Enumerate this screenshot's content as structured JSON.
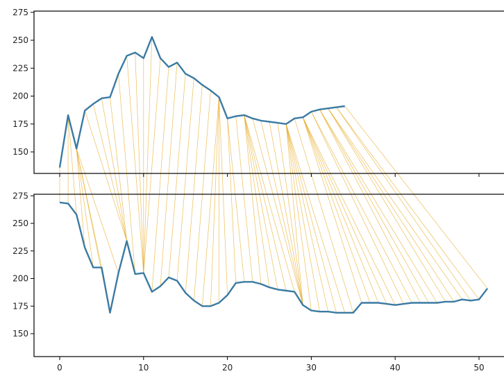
{
  "colors": {
    "series": "#3a7aa3",
    "connection": "#e6a81e",
    "axis": "#000000"
  },
  "chart_data": [
    {
      "type": "line",
      "panel": "top",
      "title": "",
      "xlabel": "",
      "ylabel": "",
      "xlim": [
        -2,
        53
      ],
      "ylim": [
        130,
        278
      ],
      "yticks": [
        150,
        175,
        200,
        225,
        250,
        275
      ],
      "series": [
        {
          "x": [
            0,
            1,
            2,
            3,
            4,
            5,
            6,
            7,
            8,
            9,
            10,
            11,
            12,
            13,
            14,
            15,
            16,
            17,
            18,
            19,
            20,
            21,
            22,
            23,
            24,
            25,
            26,
            27,
            28,
            29,
            30,
            31,
            32,
            33,
            34
          ],
          "values": [
            136,
            183,
            153,
            187,
            193,
            198,
            199,
            220,
            236,
            239,
            234,
            253,
            234,
            226,
            230,
            220,
            216,
            210,
            205,
            199,
            180,
            182,
            183,
            180,
            178,
            177,
            176,
            175,
            180,
            181,
            186,
            188,
            189,
            190,
            191
          ]
        }
      ]
    },
    {
      "type": "line",
      "panel": "bottom",
      "title": "",
      "xlabel": "",
      "ylabel": "",
      "xlim": [
        -2,
        53
      ],
      "ylim": [
        130,
        278
      ],
      "xticks": [
        0,
        10,
        20,
        30,
        40,
        50
      ],
      "yticks": [
        150,
        175,
        200,
        225,
        250,
        275
      ],
      "series": [
        {
          "x": [
            0,
            1,
            2,
            3,
            4,
            5,
            6,
            7,
            8,
            9,
            10,
            11,
            12,
            13,
            14,
            15,
            16,
            17,
            18,
            19,
            20,
            21,
            22,
            23,
            24,
            25,
            26,
            27,
            28,
            29,
            30,
            31,
            32,
            33,
            34,
            35,
            36,
            37,
            38,
            39,
            40,
            41,
            42,
            43,
            44,
            45,
            46,
            47,
            48,
            49,
            50,
            51
          ],
          "values": [
            269,
            268,
            258,
            228,
            210,
            210,
            169,
            205,
            234,
            204,
            205,
            188,
            193,
            201,
            198,
            187,
            180,
            175,
            175,
            178,
            185,
            196,
            197,
            197,
            195,
            192,
            190,
            189,
            188,
            176,
            171,
            170,
            170,
            169,
            169,
            169,
            178,
            178,
            178,
            177,
            176,
            177,
            178,
            178,
            178,
            178,
            179,
            179,
            181,
            180,
            181,
            191
          ]
        }
      ]
    }
  ],
  "alignment_path": [
    [
      0,
      0
    ],
    [
      1,
      1
    ],
    [
      1,
      2
    ],
    [
      2,
      3
    ],
    [
      2,
      4
    ],
    [
      2,
      5
    ],
    [
      2,
      6
    ],
    [
      2,
      7
    ],
    [
      3,
      8
    ],
    [
      4,
      8
    ],
    [
      5,
      8
    ],
    [
      6,
      8
    ],
    [
      7,
      9
    ],
    [
      8,
      10
    ],
    [
      9,
      10
    ],
    [
      10,
      10
    ],
    [
      11,
      10
    ],
    [
      12,
      10
    ],
    [
      13,
      11
    ],
    [
      14,
      12
    ],
    [
      15,
      13
    ],
    [
      16,
      14
    ],
    [
      17,
      15
    ],
    [
      18,
      16
    ],
    [
      19,
      17
    ],
    [
      19,
      18
    ],
    [
      19,
      19
    ],
    [
      19,
      20
    ],
    [
      20,
      21
    ],
    [
      20,
      22
    ],
    [
      21,
      23
    ],
    [
      22,
      24
    ],
    [
      22,
      25
    ],
    [
      22,
      26
    ],
    [
      22,
      27
    ],
    [
      22,
      28
    ],
    [
      23,
      29
    ],
    [
      24,
      29
    ],
    [
      25,
      29
    ],
    [
      26,
      29
    ],
    [
      27,
      29
    ],
    [
      27,
      30
    ],
    [
      27,
      31
    ],
    [
      27,
      32
    ],
    [
      27,
      33
    ],
    [
      27,
      34
    ],
    [
      28,
      35
    ],
    [
      29,
      36
    ],
    [
      29,
      37
    ],
    [
      29,
      38
    ],
    [
      29,
      39
    ],
    [
      29,
      40
    ],
    [
      30,
      41
    ],
    [
      30,
      42
    ],
    [
      31,
      43
    ],
    [
      31,
      44
    ],
    [
      31,
      45
    ],
    [
      32,
      46
    ],
    [
      32,
      47
    ],
    [
      32,
      48
    ],
    [
      33,
      49
    ],
    [
      33,
      50
    ],
    [
      34,
      51
    ]
  ]
}
